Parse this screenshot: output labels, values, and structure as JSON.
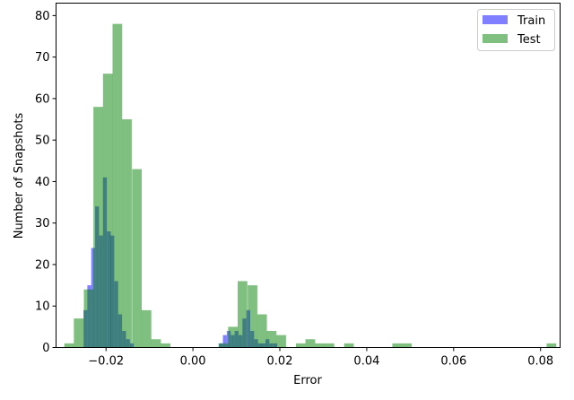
{
  "chart_data": {
    "type": "bar",
    "subtype": "overlaid-histogram",
    "xlabel": "Error",
    "ylabel": "Number of Snapshots",
    "xlim": [
      -0.0315,
      0.0845
    ],
    "ylim": [
      0,
      83
    ],
    "xticks": [
      -0.02,
      0.0,
      0.02,
      0.04,
      0.06,
      0.08
    ],
    "xtick_labels": [
      "−0.02",
      "0.00",
      "0.02",
      "0.04",
      "0.06",
      "0.08"
    ],
    "yticks": [
      0,
      10,
      20,
      30,
      40,
      50,
      60,
      70,
      80
    ],
    "ytick_labels": [
      "0",
      "10",
      "20",
      "30",
      "40",
      "50",
      "60",
      "70",
      "80"
    ],
    "grid": false,
    "legend_position": "top-right",
    "series": [
      {
        "name": "Train",
        "color": "#0000ff",
        "opacity": 0.5,
        "bin_width": 0.000888,
        "bins": [
          [
            -0.0252,
            9
          ],
          [
            -0.0243,
            15
          ],
          [
            -0.0234,
            24
          ],
          [
            -0.0225,
            34
          ],
          [
            -0.0216,
            27
          ],
          [
            -0.0207,
            41
          ],
          [
            -0.0198,
            28
          ],
          [
            -0.019,
            27
          ],
          [
            -0.0181,
            16
          ],
          [
            -0.0172,
            8
          ],
          [
            -0.0163,
            4
          ],
          [
            -0.0154,
            2
          ],
          [
            -0.0145,
            1
          ],
          [
            0.006,
            1
          ],
          [
            0.0069,
            3
          ],
          [
            0.0078,
            4
          ],
          [
            0.0087,
            3
          ],
          [
            0.0096,
            4
          ],
          [
            0.0105,
            3
          ],
          [
            0.0114,
            7
          ],
          [
            0.0123,
            9
          ],
          [
            0.0132,
            4
          ],
          [
            0.0141,
            2
          ],
          [
            0.015,
            1
          ],
          [
            0.0158,
            1
          ],
          [
            0.0167,
            2
          ],
          [
            0.0176,
            1
          ],
          [
            0.0185,
            1
          ]
        ]
      },
      {
        "name": "Test",
        "color": "#008000",
        "opacity": 0.5,
        "bin_width": 0.00222,
        "bins": [
          [
            -0.0296,
            1
          ],
          [
            -0.0274,
            7
          ],
          [
            -0.0251,
            14
          ],
          [
            -0.0229,
            58
          ],
          [
            -0.0207,
            66
          ],
          [
            -0.0185,
            78
          ],
          [
            -0.0163,
            55
          ],
          [
            -0.014,
            43
          ],
          [
            -0.0118,
            9
          ],
          [
            -0.0096,
            2
          ],
          [
            -0.0074,
            1
          ],
          [
            0.0059,
            1
          ],
          [
            0.0081,
            5
          ],
          [
            0.0103,
            16
          ],
          [
            0.0126,
            15
          ],
          [
            0.0148,
            8
          ],
          [
            0.017,
            4
          ],
          [
            0.0192,
            3
          ],
          [
            0.0214,
            0
          ],
          [
            0.0237,
            1
          ],
          [
            0.0259,
            2
          ],
          [
            0.0281,
            1
          ],
          [
            0.0303,
            1
          ],
          [
            0.0348,
            1
          ],
          [
            0.0459,
            1
          ],
          [
            0.0481,
            1
          ],
          [
            0.0814,
            1
          ]
        ]
      }
    ]
  }
}
